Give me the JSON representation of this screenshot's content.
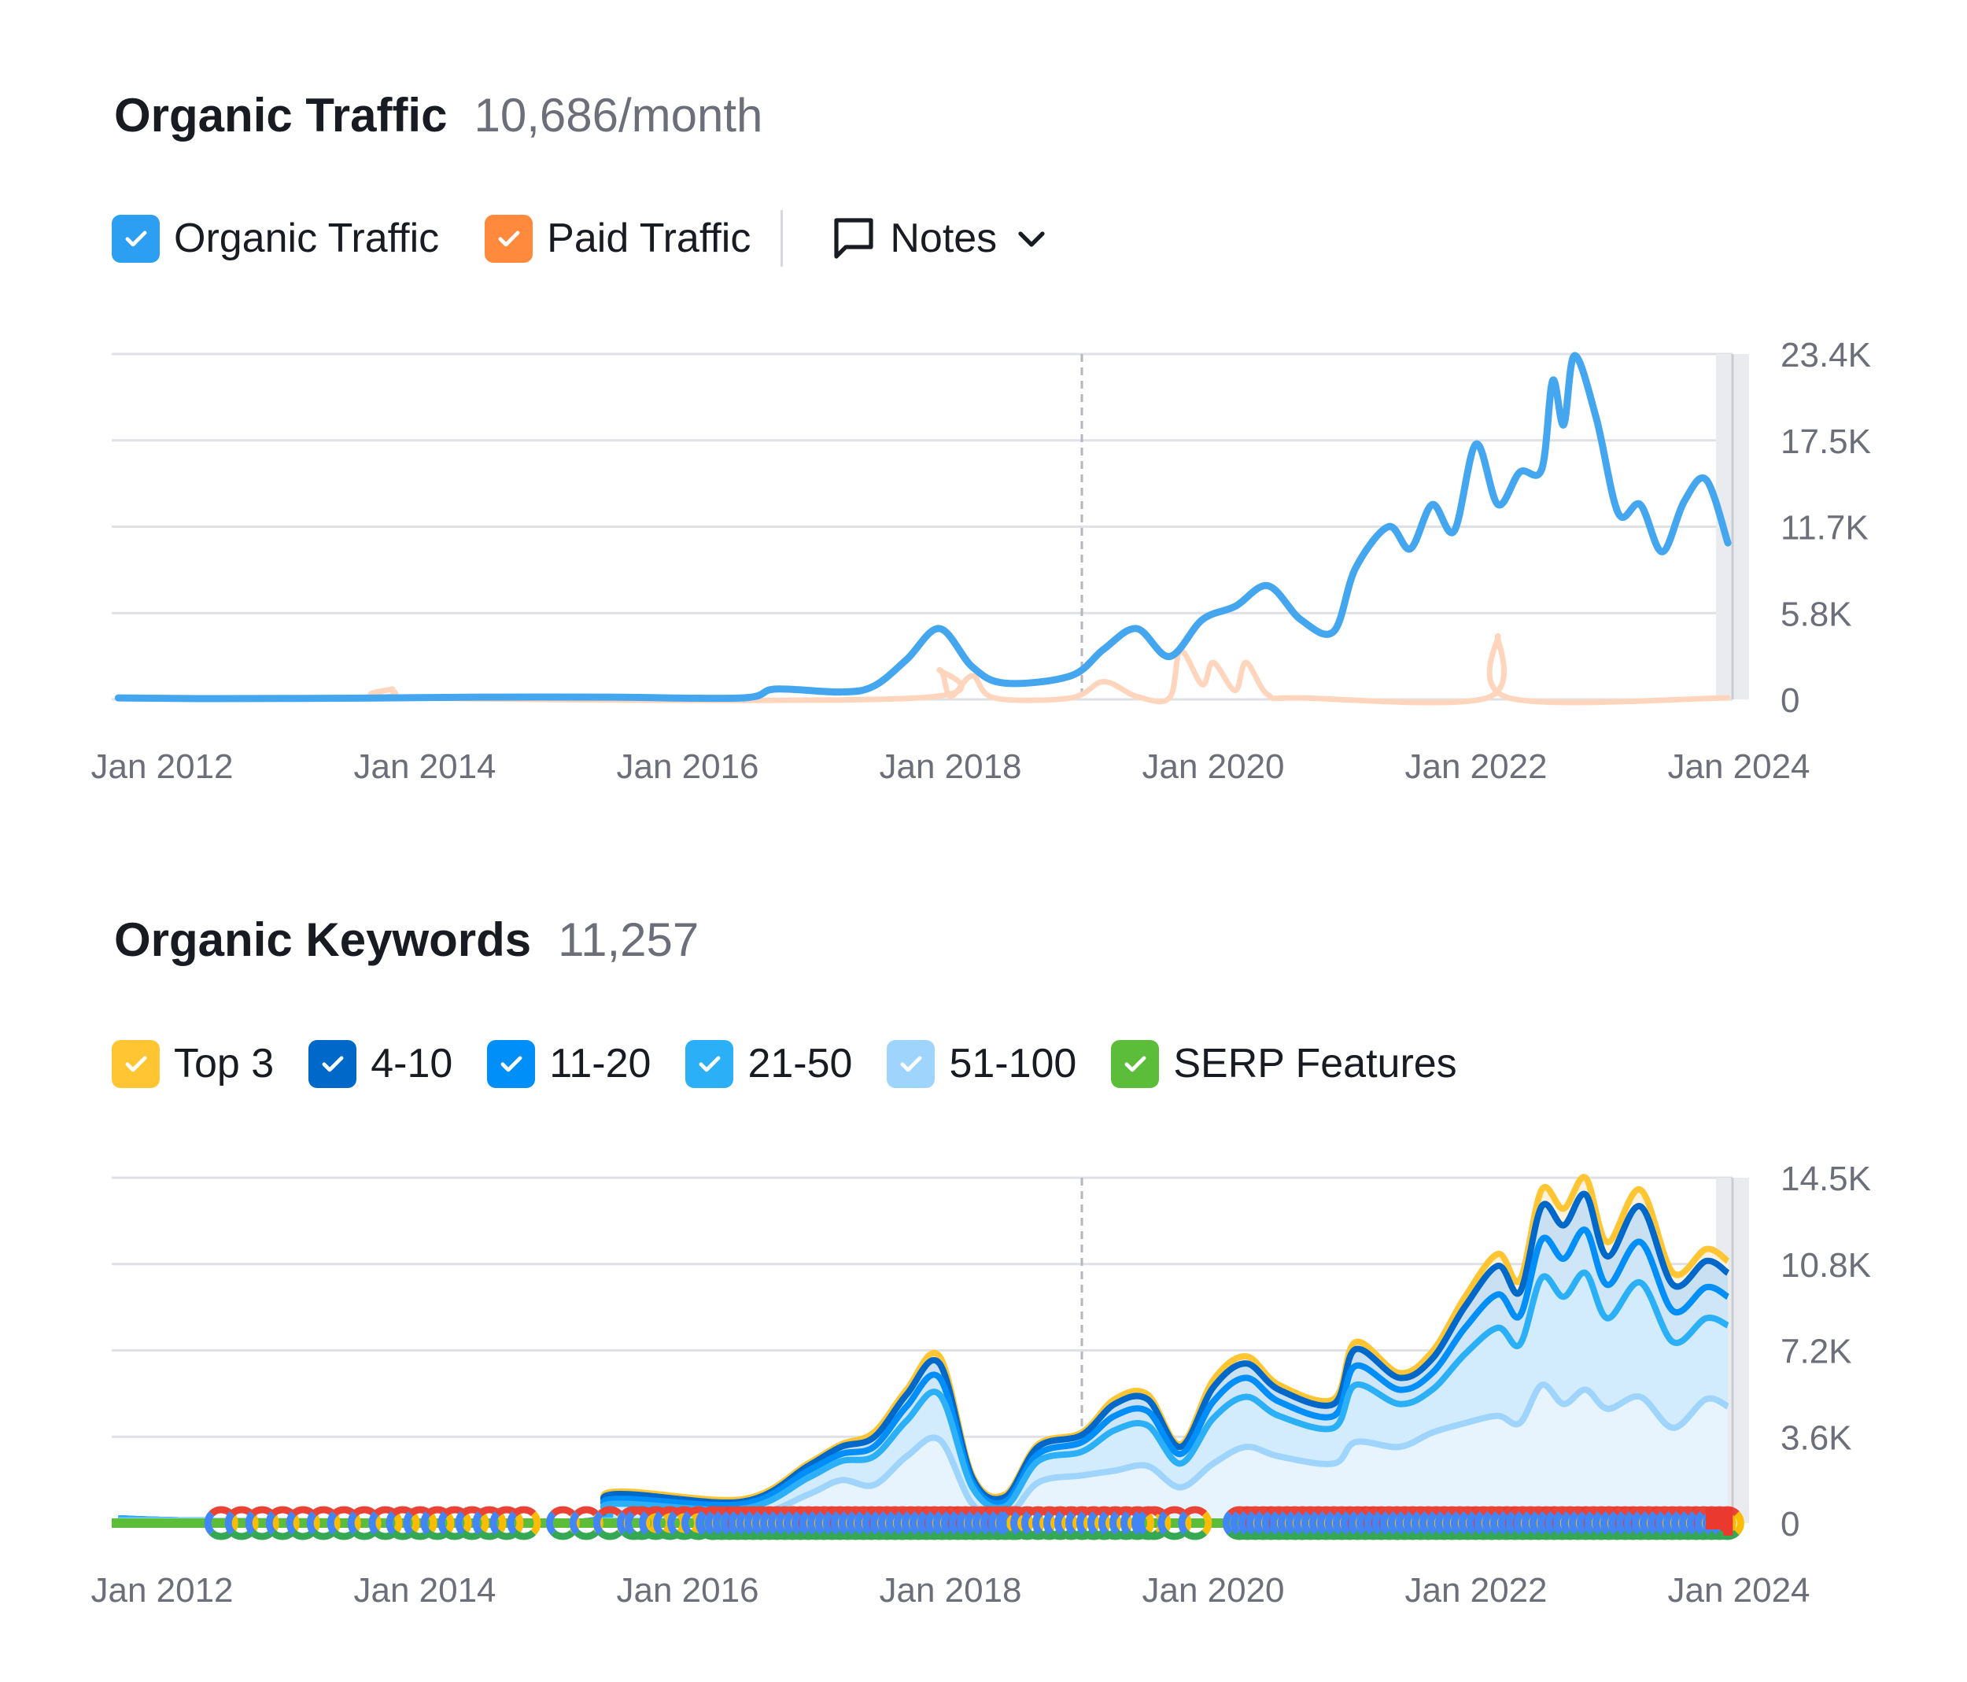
{
  "traffic": {
    "title": "Organic Traffic",
    "value": "10,686/month",
    "legend": [
      {
        "label": "Organic Traffic",
        "color": "#2d9ff2",
        "checked": true
      },
      {
        "label": "Paid Traffic",
        "color": "#ff8a3d",
        "checked": true
      }
    ],
    "notes_label": "Notes"
  },
  "keywords": {
    "title": "Organic Keywords",
    "value": "11,257",
    "legend": [
      {
        "label": "Top 3",
        "color": "#ffc533",
        "checked": true
      },
      {
        "label": "4-10",
        "color": "#0068c9",
        "checked": true
      },
      {
        "label": "11-20",
        "color": "#008ff8",
        "checked": true
      },
      {
        "label": "21-50",
        "color": "#2bb0f7",
        "checked": true
      },
      {
        "label": "51-100",
        "color": "#9fd5fc",
        "checked": true
      },
      {
        "label": "SERP Features",
        "color": "#5cbd3b",
        "checked": true
      }
    ]
  },
  "chart_data": [
    {
      "type": "line",
      "ylim": [
        0,
        23400
      ],
      "yticks": [
        "0",
        "5.8K",
        "11.7K",
        "17.5K",
        "23.4K"
      ],
      "xticks": [
        "Jan 2012",
        "Jan 2014",
        "Jan 2016",
        "Jan 2018",
        "Jan 2020",
        "Jan 2022",
        "Jan 2024"
      ],
      "grid": true,
      "annotation_line": "2019-01",
      "series": [
        {
          "name": "Organic Traffic",
          "color": "#45a6f0",
          "x": [
            "2011-09",
            "2012-06",
            "2013-06",
            "2014-06",
            "2015-06",
            "2016-06",
            "2016-09",
            "2017-03",
            "2017-06",
            "2017-09",
            "2017-12",
            "2018-03",
            "2018-06",
            "2018-12",
            "2019-03",
            "2019-06",
            "2019-09",
            "2019-12",
            "2020-03",
            "2020-06",
            "2020-09",
            "2020-12",
            "2021-02",
            "2021-05",
            "2021-07",
            "2021-09",
            "2021-11",
            "2022-01",
            "2022-03",
            "2022-05",
            "2022-07",
            "2022-08",
            "2022-09",
            "2022-10",
            "2022-12",
            "2023-02",
            "2023-04",
            "2023-06",
            "2023-08",
            "2023-10",
            "2023-12"
          ],
          "values": [
            100,
            50,
            80,
            150,
            150,
            100,
            700,
            500,
            900,
            2700,
            4800,
            2200,
            1100,
            1600,
            3400,
            4800,
            2900,
            5400,
            6300,
            7700,
            5400,
            4600,
            8900,
            11700,
            10200,
            13200,
            11400,
            17300,
            13200,
            15400,
            15600,
            21600,
            18600,
            23300,
            19000,
            12600,
            13200,
            10000,
            13400,
            14900,
            10600
          ]
        },
        {
          "name": "Paid Traffic",
          "color": "#ffd6bd",
          "x": [
            "2011-09",
            "2013-08",
            "2013-10",
            "2013-12",
            "2017-10",
            "2017-12",
            "2018-01",
            "2018-03",
            "2018-05",
            "2018-12",
            "2019-03",
            "2019-06",
            "2019-09",
            "2019-10",
            "2019-12",
            "2020-01",
            "2020-03",
            "2020-04",
            "2020-06",
            "2020-09",
            "2022-02",
            "2022-03",
            "2022-04",
            "2023-12"
          ],
          "values": [
            100,
            100,
            700,
            100,
            100,
            2000,
            200,
            1600,
            100,
            100,
            1200,
            200,
            100,
            3300,
            1000,
            2500,
            600,
            2500,
            300,
            100,
            100,
            4300,
            100,
            100
          ]
        }
      ]
    },
    {
      "type": "area",
      "stacked": true,
      "ylim": [
        0,
        14500
      ],
      "yticks": [
        "0",
        "3.6K",
        "7.2K",
        "10.8K",
        "14.5K"
      ],
      "xticks": [
        "Jan 2012",
        "Jan 2014",
        "Jan 2016",
        "Jan 2018",
        "Jan 2020",
        "Jan 2022",
        "Jan 2024"
      ],
      "grid": true,
      "annotation_line": "2019-01",
      "x": [
        "2011-09",
        "2012-06",
        "2015-03",
        "2015-06",
        "2016-06",
        "2016-12",
        "2017-03",
        "2017-06",
        "2017-09",
        "2017-12",
        "2018-03",
        "2018-06",
        "2018-09",
        "2019-01",
        "2019-04",
        "2019-07",
        "2019-10",
        "2020-01",
        "2020-04",
        "2020-07",
        "2020-12",
        "2021-02",
        "2021-06",
        "2021-09",
        "2021-12",
        "2022-03",
        "2022-05",
        "2022-07",
        "2022-09",
        "2022-11",
        "2023-01",
        "2023-04",
        "2023-07",
        "2023-10",
        "2023-12"
      ],
      "series": [
        {
          "name": "51-100",
          "color": "#9fd5fc",
          "values": [
            100,
            100,
            50,
            100,
            200,
            1200,
            1800,
            1600,
            2800,
            3500,
            800,
            200,
            1700,
            2000,
            2200,
            2400,
            1500,
            2500,
            3200,
            2800,
            2500,
            3400,
            3200,
            3800,
            4200,
            4500,
            4200,
            5800,
            5000,
            5600,
            4800,
            5300,
            4000,
            5200,
            4900
          ]
        },
        {
          "name": "21-50",
          "color": "#2bb0f7",
          "values": [
            100,
            0,
            0,
            700,
            400,
            700,
            800,
            1200,
            1500,
            1900,
            700,
            500,
            900,
            1000,
            1700,
            1700,
            1000,
            1900,
            2100,
            1700,
            1500,
            2400,
            1800,
            1800,
            2900,
            3700,
            3300,
            4500,
            4500,
            4900,
            3800,
            4800,
            3600,
            3400,
            3400
          ]
        },
        {
          "name": "11-20",
          "color": "#008ff8",
          "values": [
            0,
            0,
            0,
            200,
            200,
            300,
            300,
            400,
            600,
            700,
            200,
            200,
            300,
            400,
            600,
            600,
            400,
            700,
            800,
            600,
            500,
            800,
            600,
            700,
            1100,
            1400,
            1200,
            1600,
            1600,
            1800,
            1400,
            1700,
            1300,
            1300,
            1200
          ]
        },
        {
          "name": "4-10",
          "color": "#0068c9",
          "values": [
            0,
            0,
            0,
            200,
            100,
            200,
            300,
            400,
            500,
            600,
            200,
            200,
            300,
            300,
            500,
            500,
            300,
            600,
            600,
            500,
            500,
            700,
            500,
            600,
            900,
            1200,
            1000,
            1400,
            1400,
            1500,
            1200,
            1500,
            1100,
            1100,
            1000
          ]
        },
        {
          "name": "Top 3",
          "color": "#ffc533",
          "values": [
            0,
            0,
            0,
            100,
            100,
            100,
            100,
            200,
            200,
            300,
            100,
            100,
            100,
            100,
            200,
            200,
            100,
            300,
            300,
            200,
            200,
            300,
            200,
            300,
            400,
            500,
            500,
            700,
            700,
            700,
            600,
            700,
            500,
            500,
            500
          ]
        }
      ]
    }
  ]
}
